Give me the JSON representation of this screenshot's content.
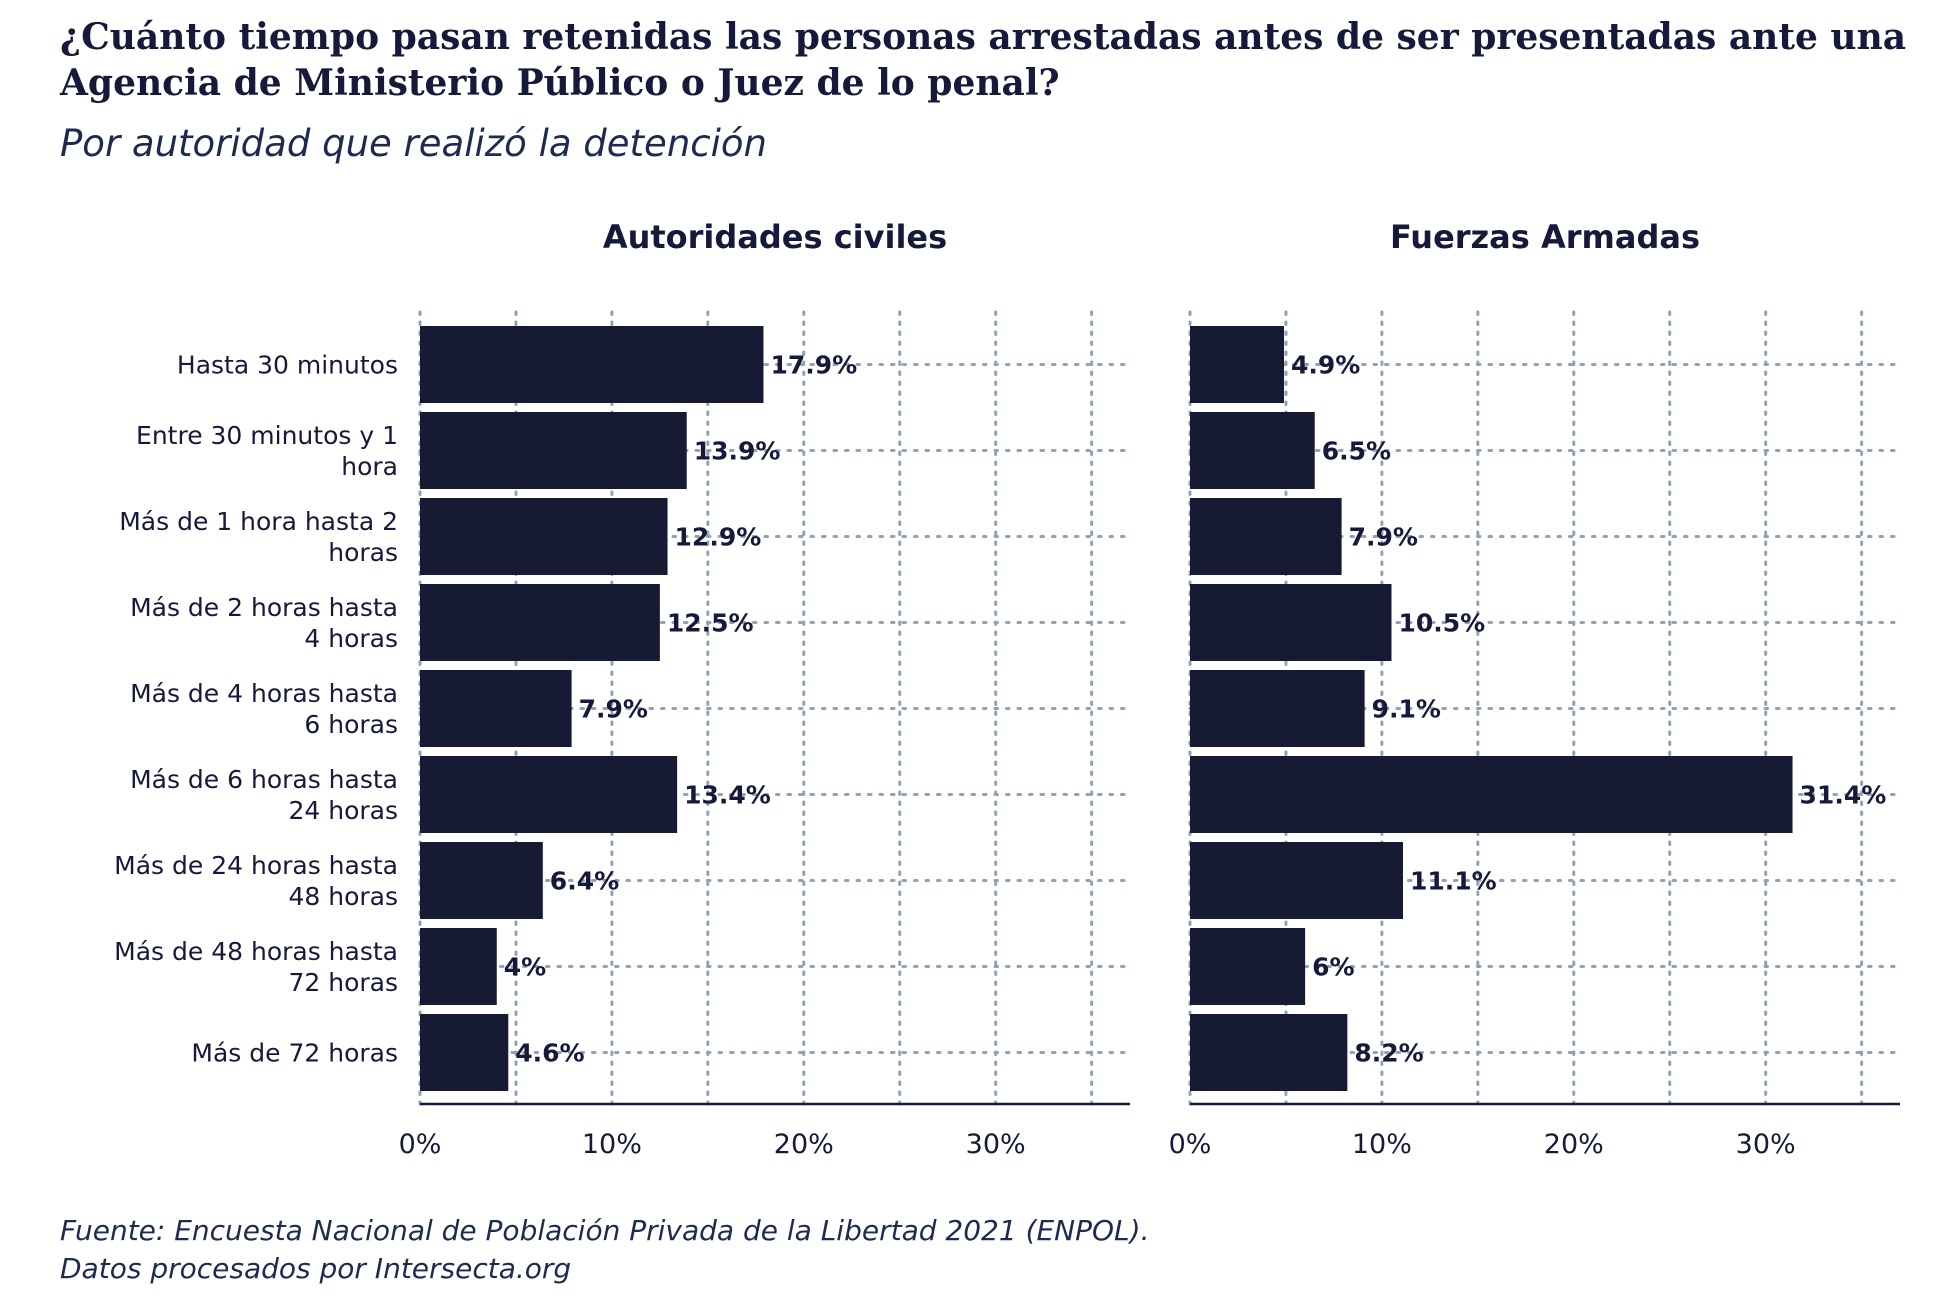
{
  "title": "¿Cuánto tiempo pasan retenidas las personas arrestadas antes de ser presentadas ante una Agencia de Ministerio Público o Juez de lo penal?",
  "subtitle": "Por autoridad que realizó la detención",
  "source_line1": "Fuente: Encuesta Nacional de Población Privada de la Libertad 2021 (ENPOL).",
  "source_line2": "Datos procesados por Intersecta.org",
  "colors": {
    "bar": "#161a33",
    "grid": "#8fa3b5",
    "axis": "#15193a",
    "text": "#15193a"
  },
  "chart_data": {
    "type": "bar",
    "orientation": "horizontal",
    "categories": [
      [
        "Hasta 30 minutos"
      ],
      [
        "Entre 30 minutos y 1",
        "hora"
      ],
      [
        "Más de 1 hora hasta 2",
        "horas"
      ],
      [
        "Más de 2 horas hasta",
        "4 horas"
      ],
      [
        "Más de 4 horas hasta",
        "6 horas"
      ],
      [
        "Más de 6 horas hasta",
        "24 horas"
      ],
      [
        "Más de 24 horas hasta",
        "48 horas"
      ],
      [
        "Más de 48 horas hasta",
        "72 horas"
      ],
      [
        "Más de 72 horas"
      ]
    ],
    "xlim": [
      0,
      37
    ],
    "x_ticks": [
      0,
      10,
      20,
      30
    ],
    "x_tick_labels": [
      "0%",
      "10%",
      "20%",
      "30%"
    ],
    "grid": "dotted",
    "panels": [
      {
        "title": "Autoridades civiles",
        "values": [
          17.9,
          13.9,
          12.9,
          12.5,
          7.9,
          13.4,
          6.4,
          4,
          4.6
        ],
        "labels": [
          "17.9%",
          "13.9%",
          "12.9%",
          "12.5%",
          "7.9%",
          "13.4%",
          "6.4%",
          "4%",
          "4.6%"
        ]
      },
      {
        "title": "Fuerzas Armadas",
        "values": [
          4.9,
          6.5,
          7.9,
          10.5,
          9.1,
          31.4,
          11.1,
          6,
          8.2
        ],
        "labels": [
          "4.9%",
          "6.5%",
          "7.9%",
          "10.5%",
          "9.1%",
          "31.4%",
          "11.1%",
          "6%",
          "8.2%"
        ]
      }
    ]
  }
}
